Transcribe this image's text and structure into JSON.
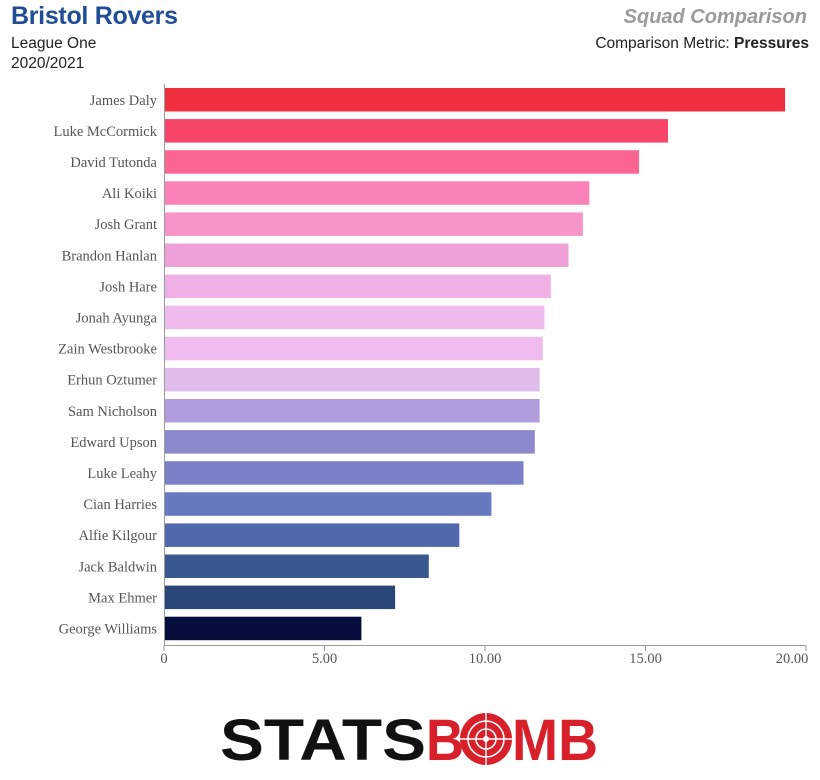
{
  "header": {
    "team": "Bristol Rovers",
    "competition": "League One",
    "season": "2020/2021",
    "chart_title": "Squad Comparison",
    "metric_label": "Comparison Metric:",
    "metric_value": "Pressures"
  },
  "logo": {
    "left": "STATS",
    "right": "BMB",
    "letter": "O",
    "colors": {
      "dark": "#111111",
      "red": "#d8202a"
    }
  },
  "chart_data": {
    "type": "bar",
    "orientation": "horizontal",
    "categories": [
      "James Daly",
      "Luke McCormick",
      "David Tutonda",
      "Ali Koiki",
      "Josh Grant",
      "Brandon Hanlan",
      "Josh Hare",
      "Jonah Ayunga",
      "Zain Westbrooke",
      "Erhun Oztumer",
      "Sam Nicholson",
      "Edward Upson",
      "Luke Leahy",
      "Cian Harries",
      "Alfie Kilgour",
      "Jack Baldwin",
      "Max Ehmer",
      "George Williams"
    ],
    "values": [
      19.35,
      15.7,
      14.8,
      13.25,
      13.05,
      12.6,
      12.05,
      11.85,
      11.8,
      11.7,
      11.7,
      11.55,
      11.2,
      10.2,
      9.2,
      8.25,
      7.2,
      6.15
    ],
    "colors": [
      "#f0303f",
      "#f8456a",
      "#fb6592",
      "#fa82b6",
      "#f794c8",
      "#efa0d8",
      "#efb0e6",
      "#efbaec",
      "#f0bcf0",
      "#e0bcec",
      "#b09cdc",
      "#8c88cc",
      "#7a80c8",
      "#6678c0",
      "#5068ae",
      "#3a5890",
      "#294678",
      "#050d3c"
    ],
    "xlim": [
      0,
      20
    ],
    "xticks": [
      "0",
      "5.00",
      "10.00",
      "15.00",
      "20.00"
    ],
    "xtick_values": [
      0,
      5,
      10,
      15,
      20
    ],
    "grid": false
  }
}
